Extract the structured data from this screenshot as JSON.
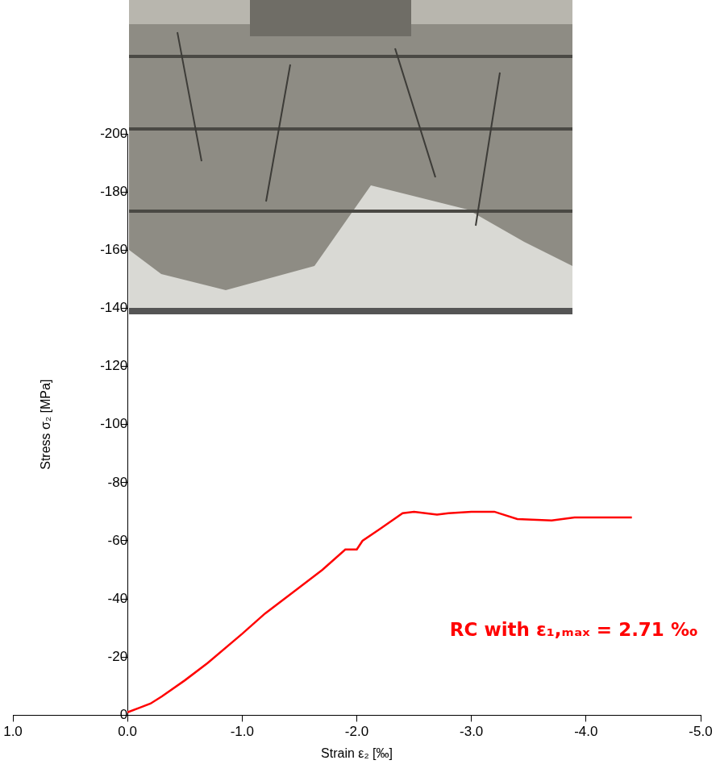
{
  "chart_data": {
    "type": "line",
    "x_label": "Strain ε₂ [‰]",
    "y_label": "Stress σ₂ [MPa]",
    "annotation": "RC with ε₁,ₘₐₓ = 2.71 ‰",
    "grid": false,
    "xlim": [
      1.0,
      -5.0
    ],
    "xticks": [
      {
        "value": 1,
        "label": "1.0"
      },
      {
        "value": 0,
        "label": "0.0"
      },
      {
        "value": -1,
        "label": "-1.0"
      },
      {
        "value": -2,
        "label": "-2.0"
      },
      {
        "value": -3,
        "label": "-3.0"
      },
      {
        "value": -4,
        "label": "-4.0"
      },
      {
        "value": -5,
        "label": "-5.0"
      }
    ],
    "ylim": [
      0,
      -200
    ],
    "yticks": [
      0,
      -20,
      -40,
      -60,
      -80,
      -100,
      -120,
      -140,
      -160,
      -180,
      -200
    ],
    "series": [
      {
        "color": "#ff0000",
        "x": [
          0,
          -0.1,
          -0.2,
          -0.3,
          -0.5,
          -0.7,
          -1.0,
          -1.2,
          -1.5,
          -1.7,
          -1.9,
          -2.0,
          -2.05,
          -2.2,
          -2.4,
          -2.5,
          -2.7,
          -2.8,
          -3.0,
          -3.2,
          -3.4,
          -3.7,
          -3.9,
          -4.1,
          -4.4
        ],
        "values": [
          -1,
          -2.5,
          -4,
          -6.5,
          -12,
          -18,
          -28,
          -35,
          -44,
          -50,
          -57,
          -57,
          -60,
          -64,
          -69.5,
          -70,
          -69,
          -69.5,
          -70,
          -70,
          -67.5,
          -67,
          -68,
          -68,
          -68
        ]
      }
    ]
  }
}
